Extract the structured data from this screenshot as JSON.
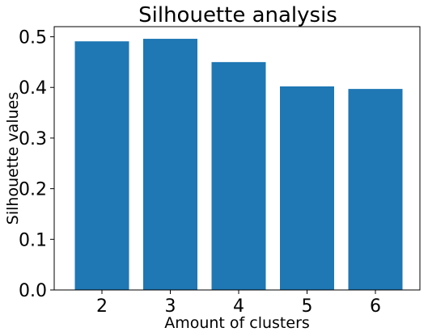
{
  "chart_data": {
    "type": "bar",
    "title": "Silhouette analysis",
    "xlabel": "Amount of clusters",
    "ylabel": "Silhouette values",
    "categories": [
      "2",
      "3",
      "4",
      "5",
      "6"
    ],
    "values": [
      0.491,
      0.496,
      0.45,
      0.402,
      0.397
    ],
    "ylim": [
      0,
      0.52
    ],
    "yticks": [
      "0.0",
      "0.1",
      "0.2",
      "0.3",
      "0.4",
      "0.5"
    ],
    "bar_color": "#1f77b4",
    "grid": false
  }
}
